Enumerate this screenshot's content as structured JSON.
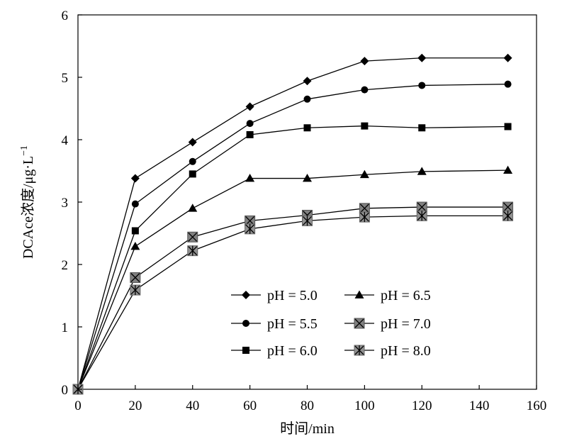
{
  "chart_data": {
    "type": "line",
    "title": "",
    "xlabel": "时间/min",
    "ylabel_main": "DCAce浓度/μg·L",
    "ylabel_sup": "−1",
    "xlim": [
      0,
      160
    ],
    "ylim": [
      0,
      6
    ],
    "x_ticks": [
      "0",
      "20",
      "40",
      "60",
      "80",
      "100",
      "120",
      "140",
      "160"
    ],
    "y_ticks": [
      "0",
      "1",
      "2",
      "3",
      "4",
      "5",
      "6"
    ],
    "grid": false,
    "legend_position": "bottom-center",
    "x": [
      0,
      20,
      40,
      60,
      80,
      100,
      120,
      150
    ],
    "series": [
      {
        "name": "pH = 5.0",
        "marker": "diamond",
        "color": "#000000",
        "values": [
          0,
          3.38,
          3.96,
          4.53,
          4.94,
          5.26,
          5.31,
          5.31
        ]
      },
      {
        "name": "pH = 5.5",
        "marker": "circle",
        "color": "#000000",
        "values": [
          0,
          2.97,
          3.65,
          4.26,
          4.65,
          4.8,
          4.87,
          4.89
        ]
      },
      {
        "name": "pH = 6.0",
        "marker": "square",
        "color": "#000000",
        "values": [
          0,
          2.54,
          3.45,
          4.08,
          4.19,
          4.22,
          4.19,
          4.21
        ]
      },
      {
        "name": "pH = 6.5",
        "marker": "triangle",
        "color": "#000000",
        "values": [
          0,
          2.29,
          2.9,
          3.38,
          3.38,
          3.44,
          3.49,
          3.51
        ]
      },
      {
        "name": "pH = 7.0",
        "marker": "square-x",
        "color": "#808080",
        "values": [
          0,
          1.79,
          2.44,
          2.7,
          2.79,
          2.9,
          2.92,
          2.92
        ]
      },
      {
        "name": "pH = 8.0",
        "marker": "square-asterisk",
        "color": "#909090",
        "values": [
          0,
          1.59,
          2.22,
          2.57,
          2.7,
          2.76,
          2.78,
          2.78
        ]
      }
    ]
  }
}
